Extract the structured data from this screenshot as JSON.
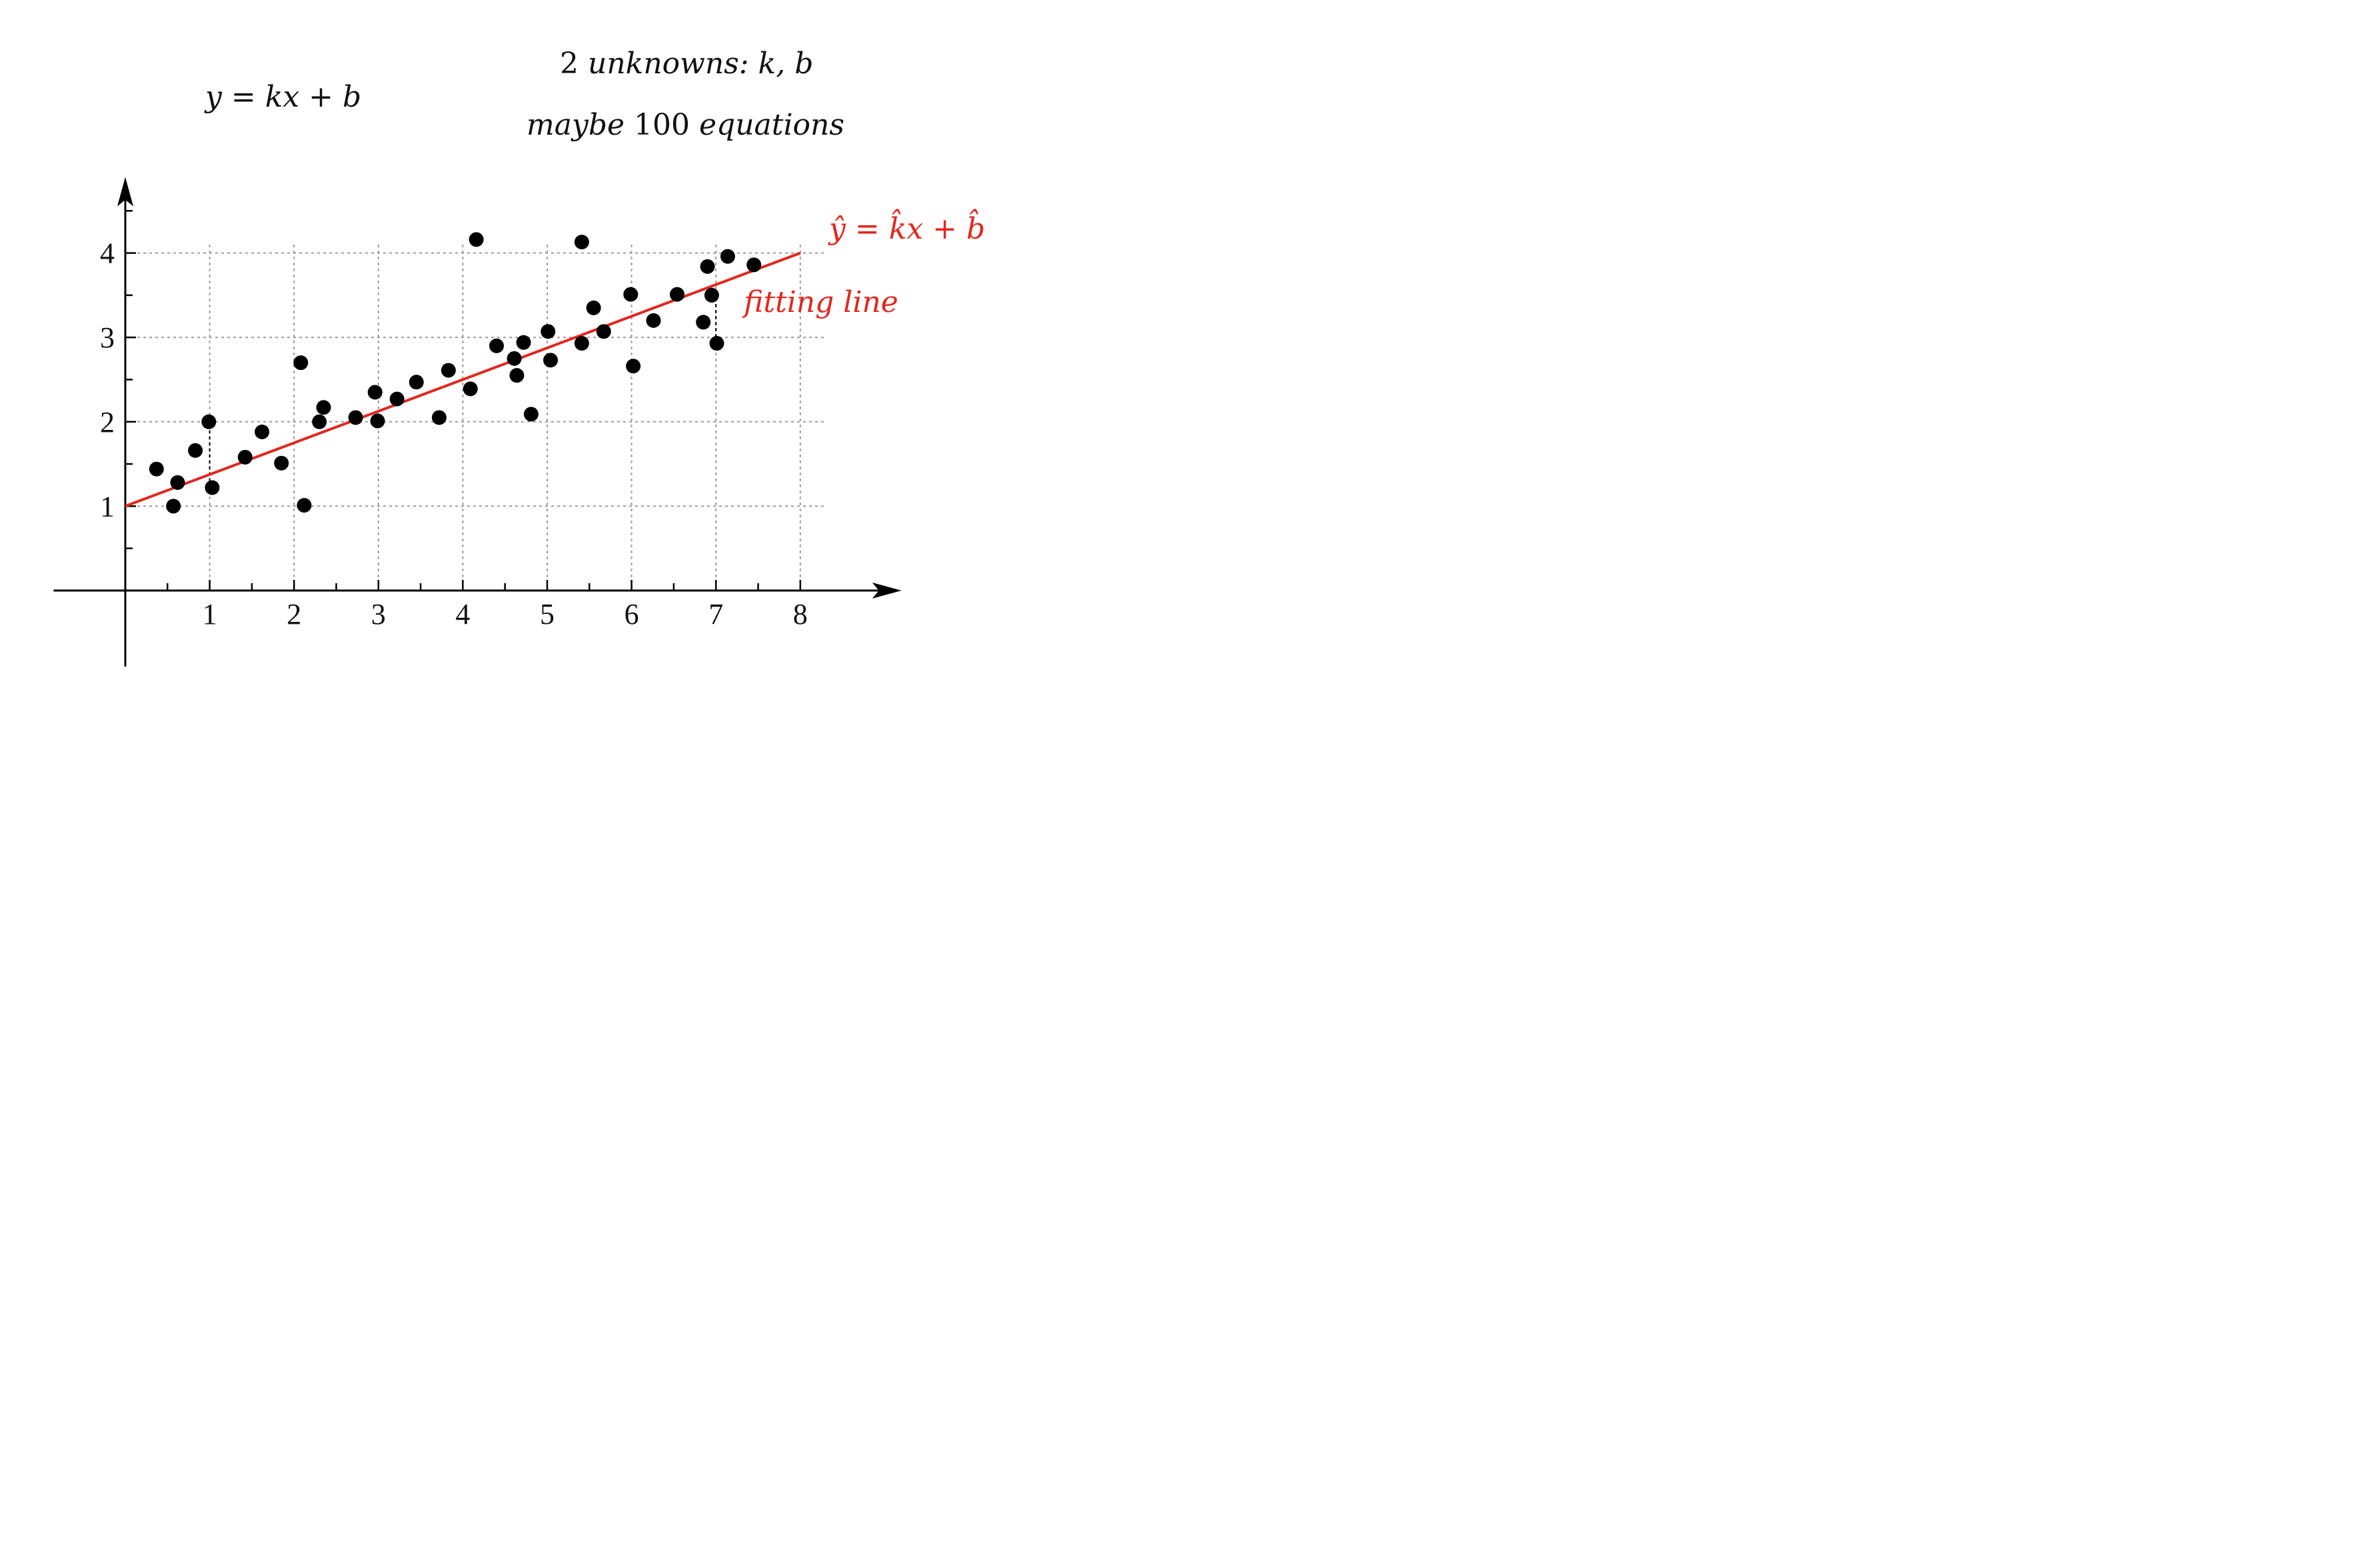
{
  "header": {
    "model_equation": "y = kx + b",
    "unknowns_count": "2",
    "unknowns_text": "unknowns: k, b",
    "equations_prefix": "maybe",
    "equations_count": "100",
    "equations_suffix": "equations"
  },
  "chart_data": {
    "type": "scatter",
    "title": "",
    "xlabel": "",
    "ylabel": "",
    "xlim": [
      -0.85,
      9.2
    ],
    "ylim": [
      -0.9,
      4.9
    ],
    "x_ticks": [
      "1",
      "2",
      "3",
      "4",
      "5",
      "6",
      "7",
      "8"
    ],
    "y_ticks": [
      "1",
      "2",
      "3",
      "4"
    ],
    "grid": "dotted",
    "colors": {
      "points": "#000000",
      "fit_line": "#e3261e",
      "grid": "#9a9a9a",
      "axes": "#000000"
    },
    "points": [
      [
        0.37,
        1.44
      ],
      [
        0.57,
        1.0
      ],
      [
        0.62,
        1.28
      ],
      [
        0.83,
        1.66
      ],
      [
        0.99,
        2.0
      ],
      [
        1.03,
        1.22
      ],
      [
        1.42,
        1.58
      ],
      [
        1.62,
        1.88
      ],
      [
        1.85,
        1.51
      ],
      [
        2.08,
        2.7
      ],
      [
        2.12,
        1.01
      ],
      [
        2.3,
        2.0
      ],
      [
        2.35,
        2.17
      ],
      [
        2.73,
        2.05
      ],
      [
        2.96,
        2.35
      ],
      [
        2.99,
        2.01
      ],
      [
        3.22,
        2.27
      ],
      [
        3.45,
        2.47
      ],
      [
        3.72,
        2.05
      ],
      [
        3.83,
        2.61
      ],
      [
        4.09,
        2.39
      ],
      [
        4.16,
        4.16
      ],
      [
        4.4,
        2.9
      ],
      [
        4.61,
        2.75
      ],
      [
        4.64,
        2.55
      ],
      [
        4.72,
        2.94
      ],
      [
        4.81,
        2.09
      ],
      [
        5.01,
        3.07
      ],
      [
        5.04,
        2.73
      ],
      [
        5.41,
        2.93
      ],
      [
        5.41,
        4.13
      ],
      [
        5.55,
        3.35
      ],
      [
        5.67,
        3.07
      ],
      [
        5.99,
        3.51
      ],
      [
        6.02,
        2.66
      ],
      [
        6.26,
        3.2
      ],
      [
        6.54,
        3.51
      ],
      [
        6.85,
        3.18
      ],
      [
        6.9,
        3.84
      ],
      [
        6.95,
        3.5
      ],
      [
        7.01,
        2.93
      ],
      [
        7.14,
        3.96
      ],
      [
        7.45,
        3.86
      ]
    ],
    "fit_line": {
      "x": [
        0,
        8
      ],
      "y": [
        1,
        4
      ],
      "label_equation": "ŷ = k̂x + b̂",
      "label_text": "fitting line"
    },
    "residuals": [
      {
        "x": 1,
        "y_from": 1.22,
        "y_to": 2.0
      },
      {
        "x": 7,
        "y_from": 2.93,
        "y_to": 3.5
      }
    ]
  }
}
